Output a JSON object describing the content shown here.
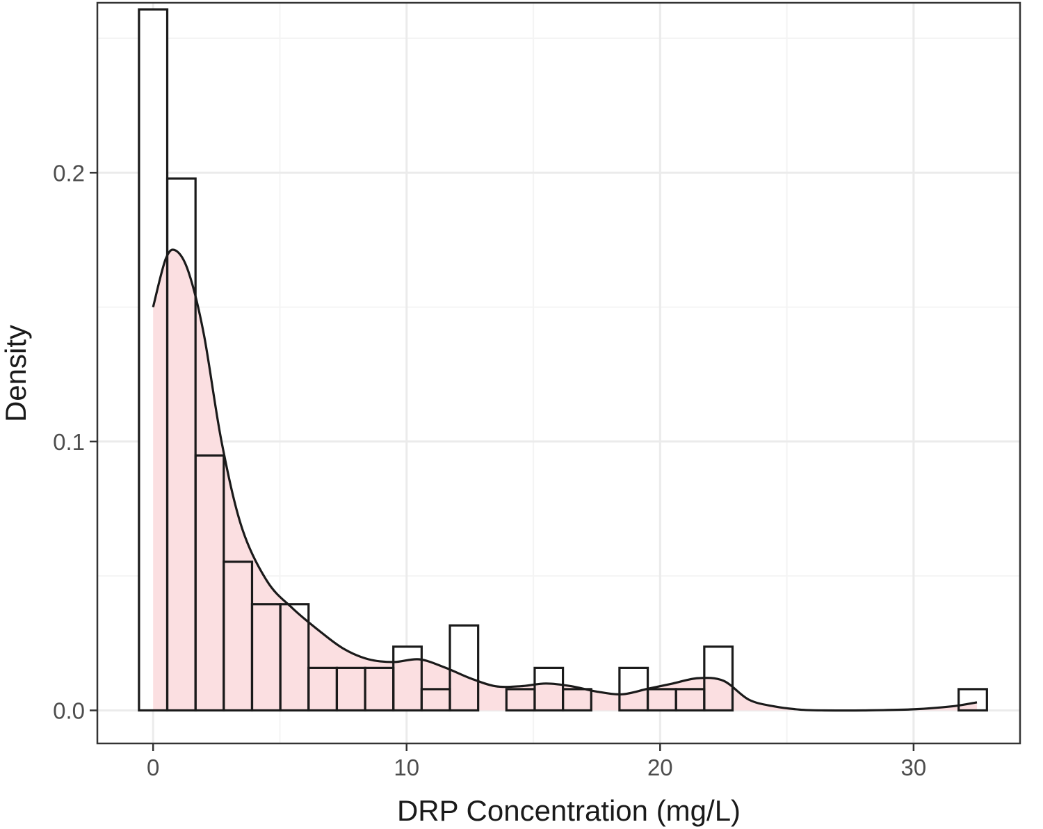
{
  "chart_data": {
    "type": "bar",
    "subtype": "histogram-with-density",
    "xlabel": "DRP Concentration (mg/L)",
    "ylabel": "Density",
    "xlim": [
      -2.2,
      34.2
    ],
    "ylim": [
      -0.0123,
      0.2632
    ],
    "x_ticks": [
      0,
      10,
      20,
      30
    ],
    "x_tick_labels": [
      "0",
      "10",
      "20",
      "30"
    ],
    "y_ticks": [
      0.0,
      0.1,
      0.2
    ],
    "y_tick_labels": [
      "0.0",
      "0.1",
      "0.2"
    ],
    "grid": true,
    "bin_width": 1.115,
    "histogram": {
      "bin_starts": [
        -0.5575,
        0.5575,
        1.6725,
        2.7875,
        3.9025,
        5.0175,
        6.1325,
        7.2475,
        8.3625,
        9.4775,
        10.5925,
        11.7075,
        12.8225,
        13.9375,
        15.0525,
        16.1675,
        17.2825,
        18.3975,
        19.5125,
        20.6275,
        21.7425,
        22.8575,
        23.9725,
        25.0875,
        26.2025,
        27.3175,
        28.4325,
        29.5475,
        30.6625,
        31.7775
      ],
      "values": [
        0.2607,
        0.1978,
        0.0948,
        0.0553,
        0.0395,
        0.0395,
        0.0158,
        0.0158,
        0.0158,
        0.0237,
        0.0079,
        0.0316,
        0.0,
        0.0079,
        0.0158,
        0.0079,
        0.0,
        0.0158,
        0.0079,
        0.0079,
        0.0237,
        0.0,
        0.0,
        0.0,
        0.0,
        0.0,
        0.0,
        0.0,
        0.0,
        0.0079
      ]
    },
    "density": {
      "x": [
        0.0,
        0.5,
        0.9,
        1.4,
        2.0,
        2.7,
        3.5,
        4.5,
        5.5,
        6.5,
        7.5,
        8.5,
        9.5,
        10.5,
        11.5,
        12.5,
        13.5,
        14.5,
        15.5,
        16.5,
        17.5,
        18.5,
        19.5,
        20.5,
        21.5,
        22.5,
        23.5,
        24.5,
        25.5,
        26.5,
        28.0,
        30.0,
        31.5,
        32.5
      ],
      "y": [
        0.15,
        0.168,
        0.171,
        0.163,
        0.14,
        0.1,
        0.068,
        0.048,
        0.038,
        0.03,
        0.023,
        0.019,
        0.018,
        0.019,
        0.016,
        0.012,
        0.009,
        0.009,
        0.01,
        0.009,
        0.007,
        0.006,
        0.008,
        0.01,
        0.012,
        0.011,
        0.004,
        0.0015,
        0.0003,
        0.0,
        0.0,
        0.0004,
        0.0015,
        0.003
      ]
    },
    "colors": {
      "density_fill": "#fbdfe1",
      "line": "#1a1a1a",
      "bar_fill": "#ffffff",
      "grid_major": "#ebebeb",
      "grid_minor": "#f4f4f4",
      "panel_border": "#333333"
    }
  }
}
